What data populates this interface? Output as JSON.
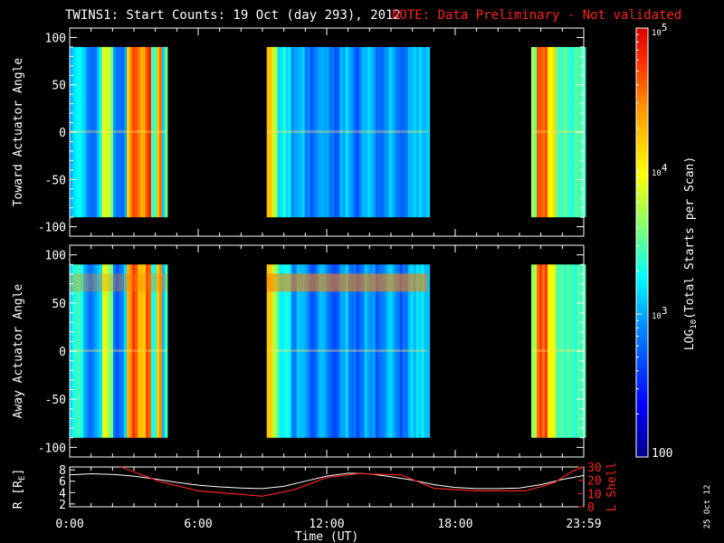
{
  "chart_data": [
    {
      "type": "heatmap",
      "title": "TWINS1: Start Counts: 19 Oct (day 293), 2012",
      "ylabel": "Toward Actuator Angle",
      "ylim": [
        -110,
        110
      ],
      "yticks": [
        100,
        50,
        0,
        -50,
        -100
      ],
      "xlim": [
        0,
        24
      ],
      "valid_ranges_hours": [
        [
          0.0,
          4.55
        ],
        [
          9.2,
          16.7
        ],
        [
          21.55,
          24.0
        ]
      ],
      "angle_range": [
        -90,
        90
      ],
      "color_scale": "log"
    },
    {
      "type": "heatmap",
      "ylabel": "Away Actuator Angle",
      "ylim": [
        -110,
        110
      ],
      "yticks": [
        100,
        50,
        0,
        -50,
        -100
      ],
      "xlim": [
        0,
        24
      ],
      "valid_ranges_hours": [
        [
          0.0,
          4.55
        ],
        [
          9.2,
          16.7
        ],
        [
          21.55,
          24.0
        ]
      ],
      "angle_range": [
        -90,
        90
      ],
      "color_scale": "log"
    },
    {
      "type": "line",
      "ylabel": "R [R",
      "ylabel_sub": "E",
      "ylabel_tail": "]",
      "ylim": [
        1.5,
        8.5
      ],
      "yticks": [
        8,
        6,
        4,
        2
      ],
      "y2label": "L Shell",
      "y2lim": [
        0,
        30
      ],
      "y2ticks": [
        30,
        20,
        10,
        0
      ],
      "xlabel": "Time (UT)",
      "xticks": [
        {
          "x": 0,
          "label": "0:00"
        },
        {
          "x": 6,
          "label": "6:00"
        },
        {
          "x": 12,
          "label": "12:00"
        },
        {
          "x": 18,
          "label": "18:00"
        },
        {
          "x": 24,
          "label": "23:59"
        }
      ],
      "series": [
        {
          "axis": "left",
          "x": [
            0,
            1,
            2,
            3,
            4,
            5,
            6,
            7,
            8,
            9,
            10,
            11,
            12,
            13,
            14,
            15,
            16,
            17,
            18,
            19,
            20,
            21,
            22,
            23,
            24
          ],
          "y": [
            7.1,
            7.3,
            7.2,
            6.9,
            6.4,
            5.8,
            5.3,
            5.0,
            4.8,
            4.7,
            5.1,
            6.0,
            6.9,
            7.4,
            7.3,
            6.8,
            6.2,
            5.4,
            4.9,
            4.7,
            4.7,
            4.8,
            5.4,
            6.3,
            7.0
          ]
        },
        {
          "axis": "right",
          "x": [
            2.4,
            4.2,
            6.0,
            9.0,
            10.5,
            12.0,
            13.5,
            15.5,
            17.0,
            19.0,
            21.3,
            22.6,
            23.5,
            24.0
          ],
          "y": [
            30,
            19,
            12,
            8,
            13,
            22,
            25,
            24,
            14,
            12,
            12,
            18,
            27,
            30
          ]
        }
      ]
    }
  ],
  "note": "NOTE: Data Preliminary - Not validated",
  "colorbar": {
    "label_prefix": "LOG",
    "label_sub": "10",
    "label_suffix": "(Total Starts per Scan)",
    "ticks": [
      {
        "value": 100000,
        "base": "10",
        "exp": "5"
      },
      {
        "value": 10000,
        "base": "10",
        "exp": "4"
      },
      {
        "value": 1000,
        "base": "10",
        "exp": "3"
      },
      {
        "value": 100,
        "base": "100",
        "exp": ""
      }
    ],
    "range": [
      100,
      100000
    ]
  },
  "datestamp": "25 Oct 12",
  "colors": {
    "r_line": "#ffffff",
    "l_line": "#ff2020",
    "note": "#ff2020",
    "background": "#000000"
  }
}
